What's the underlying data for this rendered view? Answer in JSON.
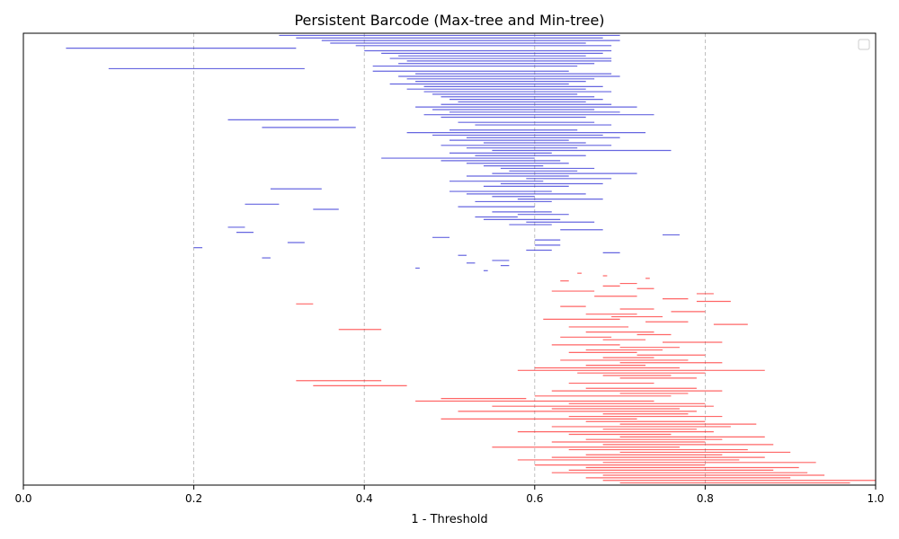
{
  "chart_data": {
    "type": "barcode",
    "title": "Persistent Barcode (Max-tree and Min-tree)",
    "xlabel": "1 - Threshold",
    "ylabel": "",
    "xlim": [
      0.0,
      1.0
    ],
    "xticks": [
      "0.0",
      "0.2",
      "0.4",
      "0.6",
      "0.8",
      "1.0"
    ],
    "grid": "vertical dashed",
    "legend": "top-right, empty",
    "series": [
      {
        "color": "#0000cc",
        "bars": [
          [
            0.3,
            0.7
          ],
          [
            0.32,
            0.68
          ],
          [
            0.35,
            0.7
          ],
          [
            0.36,
            0.66
          ],
          [
            0.39,
            0.69
          ],
          [
            0.05,
            0.32
          ],
          [
            0.4,
            0.69
          ],
          [
            0.42,
            0.68
          ],
          [
            0.44,
            0.66
          ],
          [
            0.43,
            0.69
          ],
          [
            0.45,
            0.69
          ],
          [
            0.44,
            0.67
          ],
          [
            0.41,
            0.65
          ],
          [
            0.1,
            0.33
          ],
          [
            0.41,
            0.64
          ],
          [
            0.46,
            0.69
          ],
          [
            0.44,
            0.7
          ],
          [
            0.45,
            0.67
          ],
          [
            0.46,
            0.66
          ],
          [
            0.43,
            0.64
          ],
          [
            0.47,
            0.68
          ],
          [
            0.45,
            0.66
          ],
          [
            0.47,
            0.69
          ],
          [
            0.48,
            0.65
          ],
          [
            0.49,
            0.67
          ],
          [
            0.5,
            0.68
          ],
          [
            0.51,
            0.66
          ],
          [
            0.49,
            0.69
          ],
          [
            0.46,
            0.72
          ],
          [
            0.48,
            0.67
          ],
          [
            0.5,
            0.7
          ],
          [
            0.47,
            0.74
          ],
          [
            0.49,
            0.66
          ],
          [
            0.24,
            0.37
          ],
          [
            0.51,
            0.67
          ],
          [
            0.53,
            0.69
          ],
          [
            0.28,
            0.39
          ],
          [
            0.5,
            0.65
          ],
          [
            0.45,
            0.73
          ],
          [
            0.48,
            0.68
          ],
          [
            0.52,
            0.7
          ],
          [
            0.5,
            0.64
          ],
          [
            0.54,
            0.66
          ],
          [
            0.49,
            0.69
          ],
          [
            0.52,
            0.65
          ],
          [
            0.55,
            0.76
          ],
          [
            0.5,
            0.62
          ],
          [
            0.53,
            0.66
          ],
          [
            0.42,
            0.6
          ],
          [
            0.49,
            0.63
          ],
          [
            0.52,
            0.64
          ],
          [
            0.54,
            0.61
          ],
          [
            0.56,
            0.67
          ],
          [
            0.57,
            0.65
          ],
          [
            0.55,
            0.72
          ],
          [
            0.52,
            0.64
          ],
          [
            0.59,
            0.69
          ],
          [
            0.5,
            0.61
          ],
          [
            0.56,
            0.68
          ],
          [
            0.54,
            0.64
          ],
          [
            0.29,
            0.35
          ],
          [
            0.5,
            0.62
          ],
          [
            0.52,
            0.66
          ],
          [
            0.55,
            0.6
          ],
          [
            0.58,
            0.68
          ],
          [
            0.53,
            0.62
          ],
          [
            0.26,
            0.3
          ],
          [
            0.51,
            0.6
          ],
          [
            0.34,
            0.37
          ],
          [
            0.55,
            0.62
          ],
          [
            0.58,
            0.64
          ],
          [
            0.53,
            0.58
          ],
          [
            0.54,
            0.63
          ],
          [
            0.59,
            0.67
          ],
          [
            0.57,
            0.62
          ],
          [
            0.24,
            0.26
          ],
          [
            0.63,
            0.68
          ],
          [
            0.25,
            0.27
          ],
          [
            0.75,
            0.77
          ],
          [
            0.48,
            0.5
          ],
          [
            0.6,
            0.63
          ],
          [
            0.31,
            0.33
          ],
          [
            0.6,
            0.63
          ],
          [
            0.2,
            0.21
          ],
          [
            0.59,
            0.62
          ],
          [
            0.68,
            0.7
          ],
          [
            0.51,
            0.52
          ],
          [
            0.28,
            0.29
          ],
          [
            0.55,
            0.57
          ],
          [
            0.52,
            0.53
          ],
          [
            0.56,
            0.57
          ],
          [
            0.46,
            0.465
          ],
          [
            0.54,
            0.545
          ]
        ]
      },
      {
        "color": "#ff0000",
        "bars": [
          [
            0.65,
            0.655
          ],
          [
            0.68,
            0.685
          ],
          [
            0.73,
            0.735
          ],
          [
            0.63,
            0.64
          ],
          [
            0.7,
            0.72
          ],
          [
            0.68,
            0.7
          ],
          [
            0.72,
            0.74
          ],
          [
            0.62,
            0.67
          ],
          [
            0.79,
            0.81
          ],
          [
            0.67,
            0.72
          ],
          [
            0.75,
            0.78
          ],
          [
            0.79,
            0.83
          ],
          [
            0.32,
            0.34
          ],
          [
            0.63,
            0.66
          ],
          [
            0.7,
            0.74
          ],
          [
            0.76,
            0.8
          ],
          [
            0.66,
            0.72
          ],
          [
            0.69,
            0.75
          ],
          [
            0.61,
            0.7
          ],
          [
            0.73,
            0.78
          ],
          [
            0.81,
            0.85
          ],
          [
            0.64,
            0.71
          ],
          [
            0.37,
            0.42
          ],
          [
            0.66,
            0.74
          ],
          [
            0.72,
            0.76
          ],
          [
            0.63,
            0.69
          ],
          [
            0.68,
            0.73
          ],
          [
            0.75,
            0.82
          ],
          [
            0.62,
            0.7
          ],
          [
            0.7,
            0.77
          ],
          [
            0.66,
            0.75
          ],
          [
            0.64,
            0.72
          ],
          [
            0.72,
            0.8
          ],
          [
            0.68,
            0.74
          ],
          [
            0.63,
            0.78
          ],
          [
            0.7,
            0.82
          ],
          [
            0.66,
            0.73
          ],
          [
            0.6,
            0.77
          ],
          [
            0.58,
            0.87
          ],
          [
            0.65,
            0.8
          ],
          [
            0.68,
            0.76
          ],
          [
            0.7,
            0.79
          ],
          [
            0.32,
            0.42
          ],
          [
            0.64,
            0.74
          ],
          [
            0.34,
            0.45
          ],
          [
            0.66,
            0.79
          ],
          [
            0.62,
            0.82
          ],
          [
            0.7,
            0.78
          ],
          [
            0.6,
            0.76
          ],
          [
            0.49,
            0.59
          ],
          [
            0.46,
            0.74
          ],
          [
            0.64,
            0.8
          ],
          [
            0.55,
            0.81
          ],
          [
            0.62,
            0.77
          ],
          [
            0.51,
            0.79
          ],
          [
            0.68,
            0.78
          ],
          [
            0.64,
            0.82
          ],
          [
            0.49,
            0.72
          ],
          [
            0.66,
            0.8
          ],
          [
            0.7,
            0.86
          ],
          [
            0.62,
            0.83
          ],
          [
            0.68,
            0.79
          ],
          [
            0.58,
            0.81
          ],
          [
            0.64,
            0.76
          ],
          [
            0.7,
            0.87
          ],
          [
            0.66,
            0.82
          ],
          [
            0.62,
            0.8
          ],
          [
            0.68,
            0.88
          ],
          [
            0.55,
            0.77
          ],
          [
            0.64,
            0.85
          ],
          [
            0.7,
            0.9
          ],
          [
            0.66,
            0.82
          ],
          [
            0.62,
            0.87
          ],
          [
            0.58,
            0.84
          ],
          [
            0.68,
            0.93
          ],
          [
            0.6,
            0.8
          ],
          [
            0.66,
            0.91
          ],
          [
            0.64,
            0.88
          ],
          [
            0.62,
            0.92
          ],
          [
            0.68,
            0.94
          ],
          [
            0.66,
            0.9
          ],
          [
            0.68,
            1.0
          ],
          [
            0.7,
            0.97
          ]
        ]
      }
    ]
  }
}
